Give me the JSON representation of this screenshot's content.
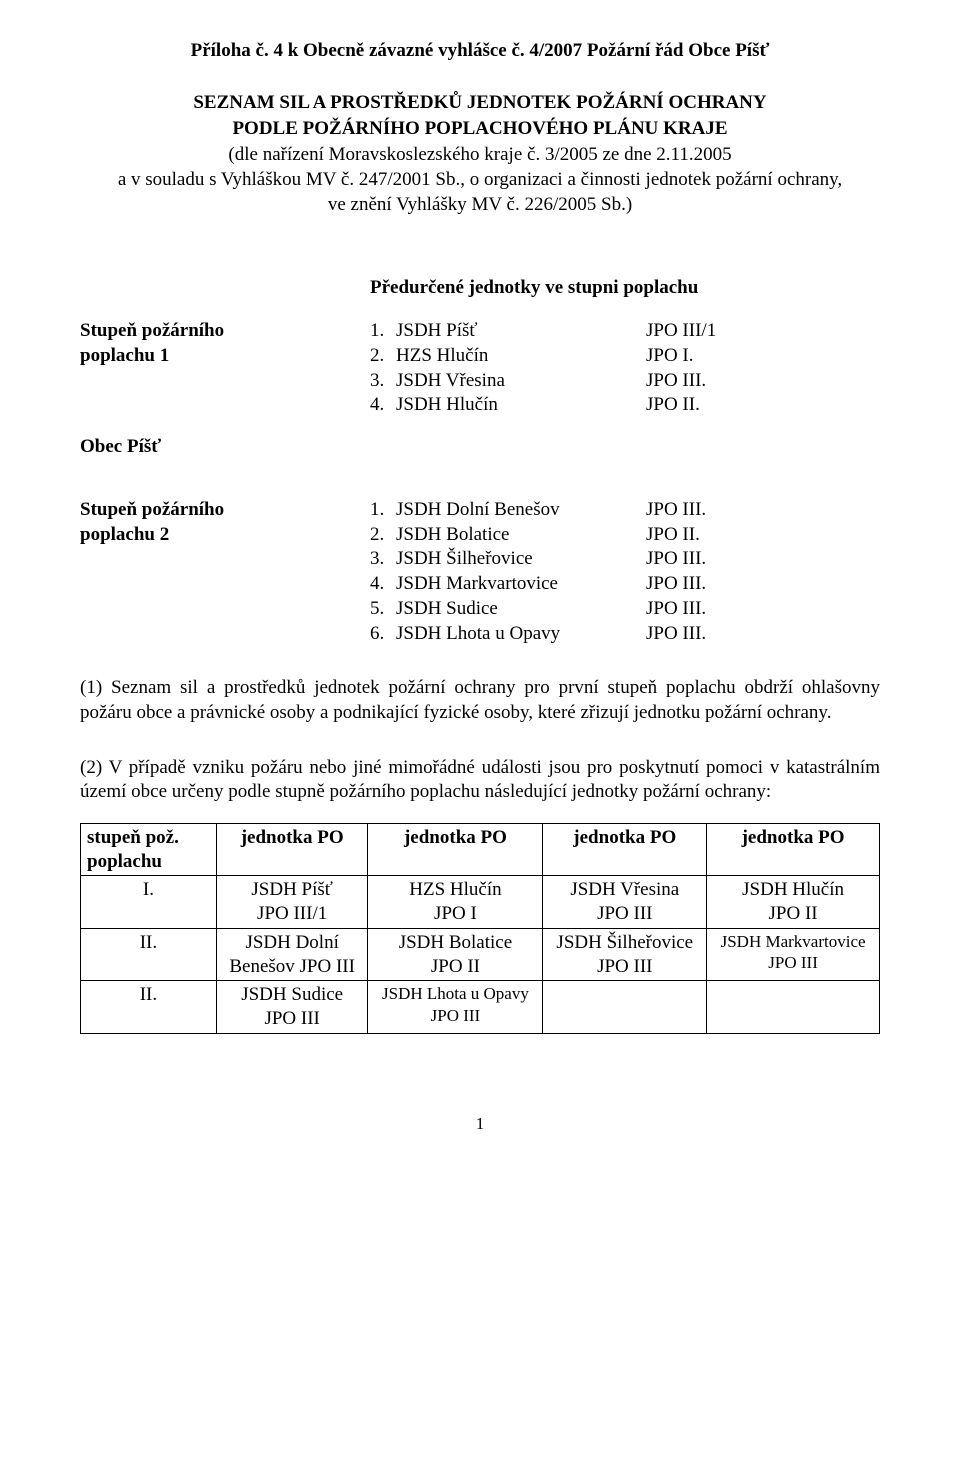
{
  "title": "Příloha č. 4 k Obecně závazné vyhlášce č. 4/2007 Požární řád Obce Píšť",
  "heading_line1": "SEZNAM SIL A PROSTŘEDKŮ JEDNOTEK POŽÁRNÍ OCHRANY",
  "heading_line2": "PODLE POŽÁRNÍHO POPLACHOVÉHO PLÁNU KRAJE",
  "intro_line1": "(dle nařízení Moravskoslezského kraje č. 3/2005 ze dne 2.11.2005",
  "intro_line2": "a v souladu s Vyhláškou MV č. 247/2001 Sb., o organizaci a činnosti jednotek požární ochrany,",
  "intro_line3": "ve znění Vyhlášky MV č. 226/2005 Sb.)",
  "pred_heading": "Předurčené jednotky ve stupni poplachu",
  "obec_label": "Obec Píšť",
  "stage1": {
    "label_line1": "Stupeň požárního",
    "label_line2": "poplachu 1",
    "units": [
      {
        "n": "1.",
        "name": "JSDH Píšť",
        "jpo": "JPO III/1"
      },
      {
        "n": "2.",
        "name": "HZS Hlučín",
        "jpo": "JPO I."
      },
      {
        "n": "3.",
        "name": "JSDH Vřesina",
        "jpo": "JPO III."
      },
      {
        "n": "4.",
        "name": "JSDH Hlučín",
        "jpo": "JPO II."
      }
    ]
  },
  "stage2": {
    "label_line1": "Stupeň požárního",
    "label_line2": "poplachu 2",
    "units": [
      {
        "n": "1.",
        "name": "JSDH Dolní Benešov",
        "jpo": "JPO III."
      },
      {
        "n": "2.",
        "name": "JSDH Bolatice",
        "jpo": "JPO II."
      },
      {
        "n": "3.",
        "name": "JSDH Šilheřovice",
        "jpo": "JPO III."
      },
      {
        "n": "4.",
        "name": "JSDH Markvartovice",
        "jpo": "JPO III."
      },
      {
        "n": "5.",
        "name": "JSDH Sudice",
        "jpo": "JPO III."
      },
      {
        "n": "6.",
        "name": "JSDH Lhota u Opavy",
        "jpo": "JPO III."
      }
    ]
  },
  "para1": "(1) Seznam sil a prostředků jednotek požární ochrany pro první stupeň poplachu obdrží ohlašovny požáru obce a právnické osoby a podnikající fyzické osoby, které zřizují jednotku požární ochrany.",
  "para2": "(2) V případě vzniku požáru nebo jiné mimořádné události jsou pro poskytnutí pomoci v katastrálním území obce určeny podle stupně požárního poplachu následující jednotky požární ochrany:",
  "table": {
    "headers": {
      "c0a": "stupeň pož.",
      "c0b": "poplachu",
      "c1": "jednotka PO",
      "c2": "jednotka PO",
      "c3": "jednotka PO",
      "c4": "jednotka PO"
    },
    "rows": [
      {
        "c0": "I.",
        "c1a": "JSDH Píšť",
        "c1b": "JPO III/1",
        "c2a": "HZS Hlučín",
        "c2b": "JPO  I",
        "c3a": "JSDH Vřesina",
        "c3b": "JPO III",
        "c4a": "JSDH Hlučín",
        "c4b": "JPO II"
      },
      {
        "c0": "II.",
        "c1a": "JSDH Dolní",
        "c1b": "Benešov JPO III",
        "c2a": "JSDH Bolatice",
        "c2b": "JPO II",
        "c3a": "JSDH Šilheřovice",
        "c3b": "JPO III",
        "c4a": "JSDH Markvartovice",
        "c4b": "JPO III"
      },
      {
        "c0": "II.",
        "c1a": "JSDH Sudice",
        "c1b": "JPO III",
        "c2a": "JSDH Lhota u Opavy",
        "c2b": "JPO III",
        "c3a": "",
        "c3b": "",
        "c4a": "",
        "c4b": ""
      }
    ]
  },
  "page_number": "1"
}
